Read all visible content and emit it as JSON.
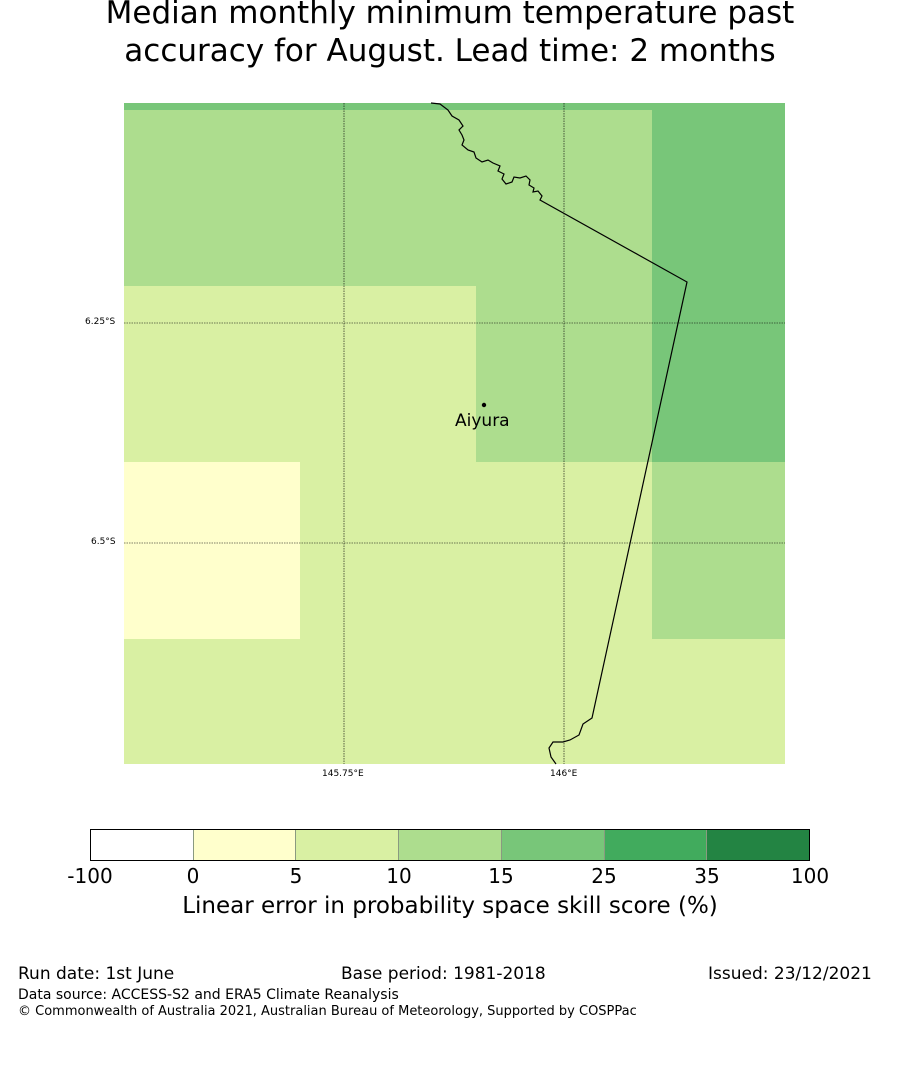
{
  "title": {
    "line1": "Median monthly minimum temperature past",
    "line2": "accuracy for August. Lead time: 2 months"
  },
  "map": {
    "lat_labels": [
      "6.25°S",
      "6.5°S"
    ],
    "lon_labels": [
      "145.75°E",
      "146°E"
    ],
    "station": {
      "name": "Aiyura",
      "lon": 145.9,
      "lat": -6.35
    },
    "category_colors": {
      "white": "#ffffff",
      "cat_0_5": "#ffffcc",
      "cat_5_10": "#d9f0a3",
      "cat_10_15": "#addd8e",
      "cat_15_25": "#78c679",
      "cat_25_35": "#41ab5d",
      "cat_35_100": "#238443"
    }
  },
  "colorbar": {
    "colors": [
      "#ffffff",
      "#ffffcc",
      "#d9f0a3",
      "#addd8e",
      "#78c679",
      "#41ab5d",
      "#238443"
    ],
    "ticks": [
      "-100",
      "0",
      "5",
      "10",
      "15",
      "25",
      "35",
      "100"
    ],
    "label": "Linear error in probability space skill score (%)"
  },
  "footer": {
    "run_date": "Run date: 1st June",
    "base_period": "Base period: 1981-2018",
    "issued": "Issued: 23/12/2021",
    "data_source": "Data source: ACCESS-S2 and ERA5 Climate Reanalysis",
    "copyright": "© Commonwealth of Australia 2021, Australian Bureau of Meteorology, Supported by COSPPac"
  }
}
